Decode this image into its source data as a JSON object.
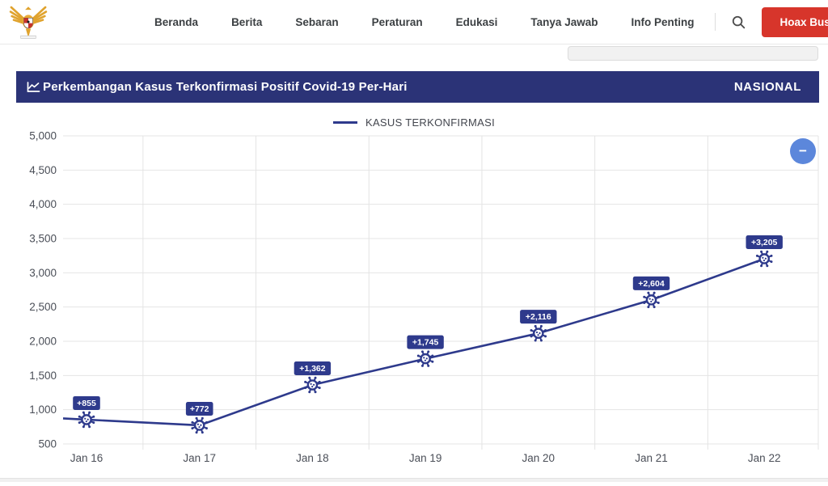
{
  "nav": {
    "menu_items": [
      "Beranda",
      "Berita",
      "Sebaran",
      "Peraturan",
      "Edukasi",
      "Tanya Jawab",
      "Info Penting"
    ],
    "hoax_button_label": "Hoax Buster"
  },
  "panel": {
    "title": "Perkembangan Kasus Terkonfirmasi Positif Covid-19 Per-Hari",
    "region": "NASIONAL"
  },
  "zoom_out_button": "−",
  "chart_data": {
    "type": "line",
    "title": "Perkembangan Kasus Terkonfirmasi Positif Covid-19 Per-Hari",
    "legend": "KASUS TERKONFIRMASI",
    "legend_position": "top",
    "categories": [
      "Jan 16",
      "Jan 17",
      "Jan 18",
      "Jan 19",
      "Jan 20",
      "Jan 21",
      "Jan 22"
    ],
    "values": [
      855,
      772,
      1362,
      1745,
      2116,
      2604,
      3205
    ],
    "data_labels": [
      "+855",
      "+772",
      "+1,362",
      "+1,745",
      "+2,116",
      "+2,604",
      "+3,205"
    ],
    "ylim": [
      500,
      5000
    ],
    "ytick_step": 500,
    "ytick_labels": [
      "5,000",
      "4,500",
      "4,000",
      "3,500",
      "3,000",
      "2,500",
      "2,000",
      "1,500",
      "1,000",
      "500"
    ],
    "grid": true,
    "line_color": "#2e3a8c",
    "point_style": "coronavirus-icon"
  },
  "colors": {
    "panel_navy": "#2b3377",
    "series_navy": "#2e3a8c",
    "hoax_red": "#d7352b",
    "zoom_button_blue": "#5c87db",
    "gridline": "#e4e4e4"
  }
}
